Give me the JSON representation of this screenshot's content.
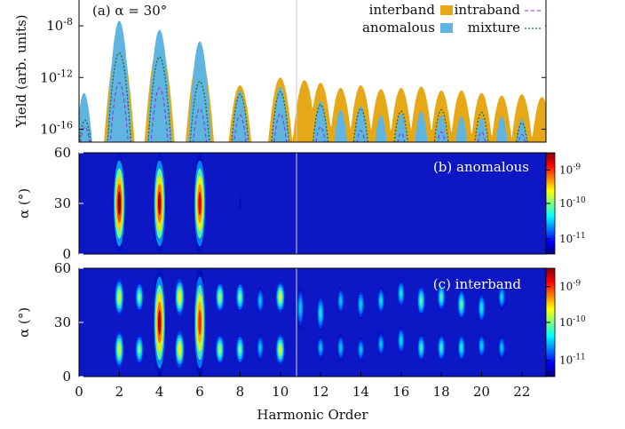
{
  "chart_data": [
    {
      "panel": "(a)",
      "title": "(a) α = 30°",
      "type": "area",
      "xlim": [
        0,
        23.2
      ],
      "ylabel": "Yield (arb. units)",
      "yscale": "log",
      "ylim_exponent": [
        -17,
        -6
      ],
      "yticks": [
        {
          "label": "10",
          "exp": "-8",
          "value": -8
        },
        {
          "label": "10",
          "exp": "-12",
          "value": -12
        },
        {
          "label": "10",
          "exp": "-16",
          "value": -16
        }
      ],
      "legend": {
        "placement": "top-right",
        "entries": [
          "interband",
          "intraband",
          "anomalous",
          "mixture"
        ]
      },
      "series": [
        {
          "name": "interband",
          "style": "filled",
          "color": "#e6a817",
          "peaks_x": [
            2,
            4,
            6,
            8,
            10,
            11.2,
            12,
            13,
            14,
            15,
            16,
            17,
            18,
            19,
            20,
            21,
            22,
            23
          ],
          "peaks_log10": [
            -9,
            -9.2,
            -10.1,
            -12.6,
            -12,
            -12.2,
            -12.4,
            -12.8,
            -12.6,
            -12.9,
            -12.8,
            -12.7,
            -13,
            -13,
            -13.2,
            -13.4,
            -13.3,
            -13.5
          ]
        },
        {
          "name": "anomalous",
          "style": "filled",
          "color": "#5fb4e0",
          "peaks_x": [
            0.25,
            2,
            4,
            6,
            8,
            10,
            12,
            13,
            14,
            15,
            16,
            17,
            18,
            19,
            20,
            21,
            22
          ],
          "peaks_log10": [
            -13.2,
            -7.6,
            -8.3,
            -9.2,
            -13,
            -12.7,
            -13.8,
            -14.5,
            -14.2,
            -14.9,
            -14.8,
            -14.6,
            -14.9,
            -15,
            -15.1,
            -15,
            -15.2
          ]
        },
        {
          "name": "mixture",
          "style": "dotted",
          "color": "#1d6b3a",
          "peaks_x": [
            0.3,
            2,
            4,
            6,
            8,
            10,
            12,
            14,
            16,
            18,
            20,
            22
          ],
          "peaks_log10": [
            -15.3,
            -10.1,
            -10.4,
            -12.3,
            -13.3,
            -13.1,
            -14.1,
            -14.4,
            -14.6,
            -14.5,
            -14.7,
            -15.5
          ]
        },
        {
          "name": "intraband",
          "style": "dashed",
          "color": "#8a2bd1",
          "peaks_x": [
            0.3,
            2,
            4,
            6,
            8,
            10,
            12,
            14,
            16,
            18,
            20,
            22
          ],
          "peaks_log10": [
            -15.8,
            -12.4,
            -12.8,
            -14.4,
            -14.9,
            -14.8,
            -15.8,
            -16.1,
            -16.3,
            -16.2,
            -16.2,
            -16.4
          ]
        }
      ]
    },
    {
      "panel": "(b)",
      "title": "(b) anomalous",
      "type": "heatmap",
      "xlim": [
        0,
        23.2
      ],
      "ylim": [
        0,
        60
      ],
      "ylabel": "α (°)",
      "yticks": [
        "0",
        "30",
        "60"
      ],
      "colorbar_ticks": [
        {
          "label": "10",
          "exp": "-9"
        },
        {
          "label": "10",
          "exp": "-10"
        },
        {
          "label": "10",
          "exp": "-11"
        }
      ],
      "blobs": [
        {
          "x": 2,
          "alpha_center": 30,
          "alpha_halfwidth": 30,
          "level": 1.0
        },
        {
          "x": 4,
          "alpha_center": 30,
          "alpha_halfwidth": 30,
          "level": 0.95
        },
        {
          "x": 6,
          "alpha_center": 30,
          "alpha_halfwidth": 30,
          "level": 0.9
        },
        {
          "x": 8,
          "alpha_center": 30,
          "alpha_halfwidth": 20,
          "level": 0.06
        }
      ]
    },
    {
      "panel": "(c)",
      "title": "(c) interband",
      "type": "heatmap",
      "xlim": [
        0,
        23.2
      ],
      "ylim": [
        0,
        60
      ],
      "ylabel": "α (°)",
      "xlabel": "Harmonic Order",
      "xticks": [
        "0",
        "2",
        "4",
        "6",
        "8",
        "10",
        "12",
        "14",
        "16",
        "18",
        "20",
        "22"
      ],
      "yticks": [
        "0",
        "30",
        "60"
      ],
      "colorbar_ticks": [
        {
          "label": "10",
          "exp": "-9"
        },
        {
          "label": "10",
          "exp": "-10"
        },
        {
          "label": "10",
          "exp": "-11"
        }
      ],
      "blobs": [
        {
          "x": 2,
          "alpha_center": 44,
          "alpha_halfwidth": 12,
          "level": 0.55
        },
        {
          "x": 2,
          "alpha_center": 15,
          "alpha_halfwidth": 12,
          "level": 0.55
        },
        {
          "x": 3,
          "alpha_center": 44,
          "alpha_halfwidth": 10,
          "level": 0.45
        },
        {
          "x": 3,
          "alpha_center": 15,
          "alpha_halfwidth": 10,
          "level": 0.45
        },
        {
          "x": 4,
          "alpha_center": 30,
          "alpha_halfwidth": 30,
          "level": 0.95
        },
        {
          "x": 5,
          "alpha_center": 44,
          "alpha_halfwidth": 12,
          "level": 0.6
        },
        {
          "x": 5,
          "alpha_center": 15,
          "alpha_halfwidth": 12,
          "level": 0.6
        },
        {
          "x": 6,
          "alpha_center": 30,
          "alpha_halfwidth": 30,
          "level": 0.85
        },
        {
          "x": 7,
          "alpha_center": 44,
          "alpha_halfwidth": 10,
          "level": 0.5
        },
        {
          "x": 7,
          "alpha_center": 15,
          "alpha_halfwidth": 10,
          "level": 0.5
        },
        {
          "x": 8,
          "alpha_center": 44,
          "alpha_halfwidth": 10,
          "level": 0.45
        },
        {
          "x": 8,
          "alpha_center": 15,
          "alpha_halfwidth": 10,
          "level": 0.45
        },
        {
          "x": 9,
          "alpha_center": 42,
          "alpha_halfwidth": 9,
          "level": 0.3
        },
        {
          "x": 9,
          "alpha_center": 16,
          "alpha_halfwidth": 9,
          "level": 0.3
        },
        {
          "x": 10,
          "alpha_center": 44,
          "alpha_halfwidth": 10,
          "level": 0.55
        },
        {
          "x": 10,
          "alpha_center": 15,
          "alpha_halfwidth": 10,
          "level": 0.55
        },
        {
          "x": 11,
          "alpha_center": 38,
          "alpha_halfwidth": 14,
          "level": 0.3
        },
        {
          "x": 12,
          "alpha_center": 35,
          "alpha_halfwidth": 12,
          "level": 0.35
        },
        {
          "x": 12,
          "alpha_center": 16,
          "alpha_halfwidth": 8,
          "level": 0.3
        },
        {
          "x": 13,
          "alpha_center": 42,
          "alpha_halfwidth": 9,
          "level": 0.3
        },
        {
          "x": 13,
          "alpha_center": 16,
          "alpha_halfwidth": 9,
          "level": 0.3
        },
        {
          "x": 14,
          "alpha_center": 40,
          "alpha_halfwidth": 10,
          "level": 0.32
        },
        {
          "x": 14,
          "alpha_center": 15,
          "alpha_halfwidth": 8,
          "level": 0.3
        },
        {
          "x": 15,
          "alpha_center": 42,
          "alpha_halfwidth": 9,
          "level": 0.33
        },
        {
          "x": 15,
          "alpha_center": 18,
          "alpha_halfwidth": 8,
          "level": 0.3
        },
        {
          "x": 16,
          "alpha_center": 46,
          "alpha_halfwidth": 9,
          "level": 0.35
        },
        {
          "x": 16,
          "alpha_center": 20,
          "alpha_halfwidth": 9,
          "level": 0.33
        },
        {
          "x": 17,
          "alpha_center": 42,
          "alpha_halfwidth": 10,
          "level": 0.42
        },
        {
          "x": 17,
          "alpha_center": 16,
          "alpha_halfwidth": 9,
          "level": 0.38
        },
        {
          "x": 18,
          "alpha_center": 44,
          "alpha_halfwidth": 9,
          "level": 0.4
        },
        {
          "x": 18,
          "alpha_center": 16,
          "alpha_halfwidth": 9,
          "level": 0.38
        },
        {
          "x": 19,
          "alpha_center": 40,
          "alpha_halfwidth": 10,
          "level": 0.42
        },
        {
          "x": 19,
          "alpha_center": 16,
          "alpha_halfwidth": 9,
          "level": 0.36
        },
        {
          "x": 20,
          "alpha_center": 38,
          "alpha_halfwidth": 10,
          "level": 0.35
        },
        {
          "x": 20,
          "alpha_center": 17,
          "alpha_halfwidth": 8,
          "level": 0.32
        },
        {
          "x": 21,
          "alpha_center": 44,
          "alpha_halfwidth": 8,
          "level": 0.32
        },
        {
          "x": 21,
          "alpha_center": 16,
          "alpha_halfwidth": 8,
          "level": 0.3
        }
      ]
    }
  ]
}
